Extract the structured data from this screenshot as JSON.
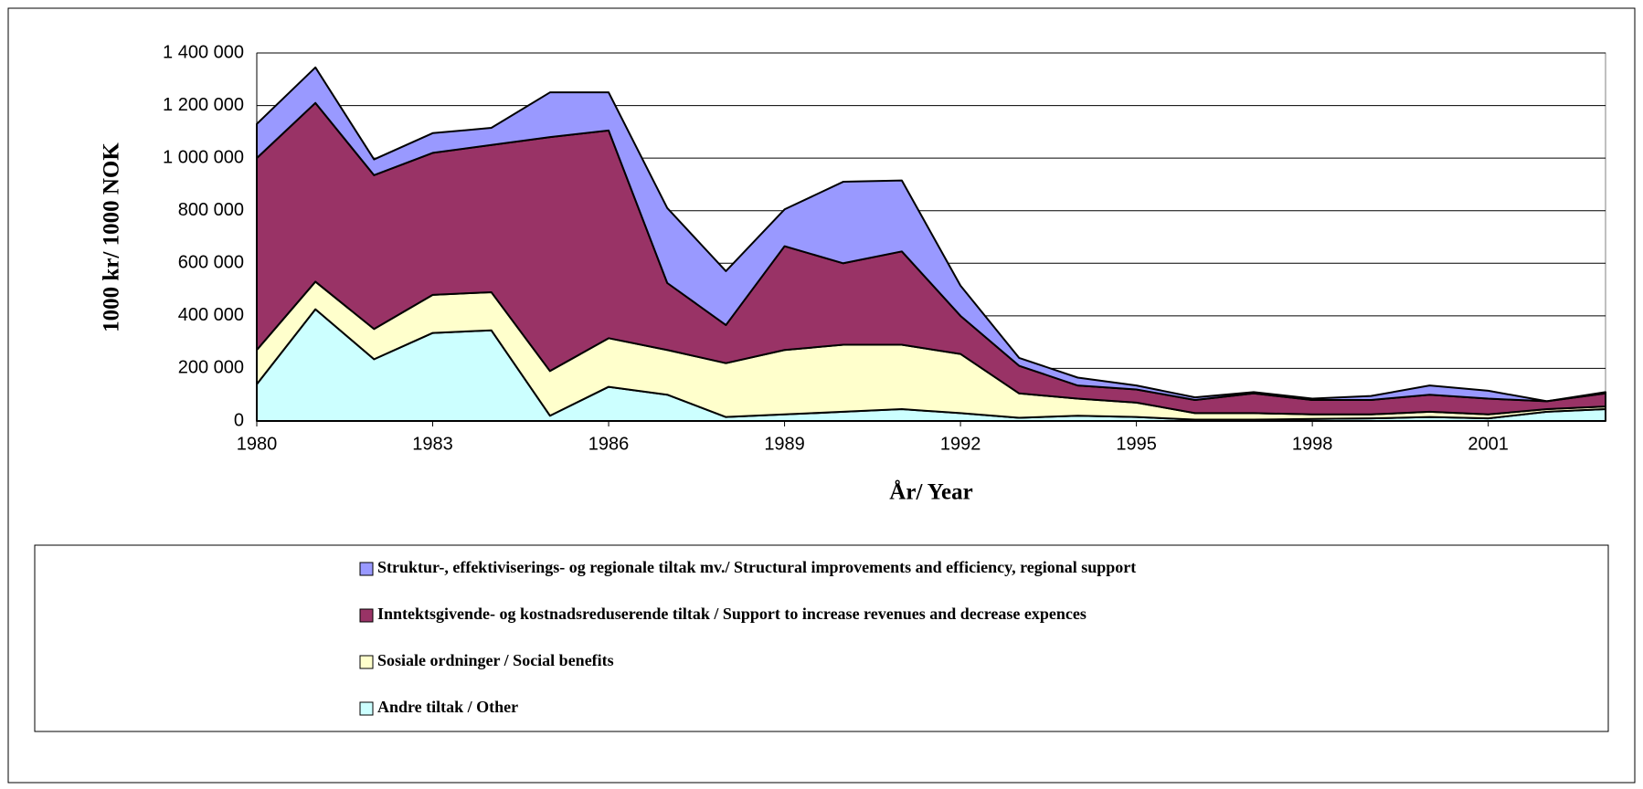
{
  "chart_data": {
    "type": "stacked_area",
    "x_label": "År/ Year",
    "y_label": "1000 kr/ 1000 NOK",
    "x": [
      1980,
      1981,
      1982,
      1983,
      1984,
      1985,
      1986,
      1987,
      1988,
      1989,
      1990,
      1991,
      1992,
      1993,
      1994,
      1995,
      1996,
      1997,
      1998,
      1999,
      2000,
      2001,
      2002,
      2003
    ],
    "xlim": [
      1980,
      2003
    ],
    "xticks": [
      1980,
      1983,
      1986,
      1989,
      1992,
      1995,
      1998,
      2001
    ],
    "ylim": [
      0,
      1400000
    ],
    "yticks": [
      0,
      {
        "value": 200000,
        "label": "200 000"
      },
      {
        "value": 400000,
        "label": "400 000"
      },
      {
        "value": 600000,
        "label": "600 000"
      },
      {
        "value": 800000,
        "label": "800 000"
      },
      {
        "value": 1000000,
        "label": "1 000 000"
      },
      {
        "value": 1200000,
        "label": "1 200 000"
      },
      {
        "value": 1400000,
        "label": "1 400 000"
      }
    ],
    "grid": true,
    "series": [
      {
        "name": "Struktur-, effektiviserings- og regionale tiltak mv./ Structural improvements and efficiency, regional support",
        "color": "#9999ff",
        "values": [
          130000,
          135000,
          60000,
          75000,
          65000,
          170000,
          145000,
          285000,
          205000,
          140000,
          310000,
          270000,
          115000,
          30000,
          30000,
          15000,
          10000,
          5000,
          5000,
          15000,
          35000,
          30000,
          0,
          5000
        ]
      },
      {
        "name": "Inntektsgivende- og kostnadsreduserende tiltak / Support to increase revenues and decrease expences",
        "color": "#993366",
        "values": [
          730000,
          680000,
          585000,
          540000,
          560000,
          890000,
          790000,
          255000,
          145000,
          395000,
          310000,
          355000,
          145000,
          105000,
          50000,
          50000,
          50000,
          75000,
          55000,
          55000,
          65000,
          60000,
          30000,
          50000
        ]
      },
      {
        "name": "Sosiale ordninger / Social benefits",
        "color": "#ffffcc",
        "values": [
          130000,
          105000,
          115000,
          145000,
          145000,
          170000,
          185000,
          170000,
          205000,
          245000,
          255000,
          245000,
          225000,
          93000,
          65000,
          55000,
          25000,
          25000,
          17000,
          15000,
          20000,
          15000,
          10000,
          10000
        ]
      },
      {
        "name": "Andre tiltak / Other",
        "color": "#ccffff",
        "values": [
          140000,
          425000,
          235000,
          335000,
          345000,
          20000,
          130000,
          100000,
          15000,
          25000,
          35000,
          45000,
          30000,
          12000,
          20000,
          15000,
          5000,
          5000,
          8000,
          10000,
          15000,
          10000,
          35000,
          45000
        ]
      }
    ]
  }
}
